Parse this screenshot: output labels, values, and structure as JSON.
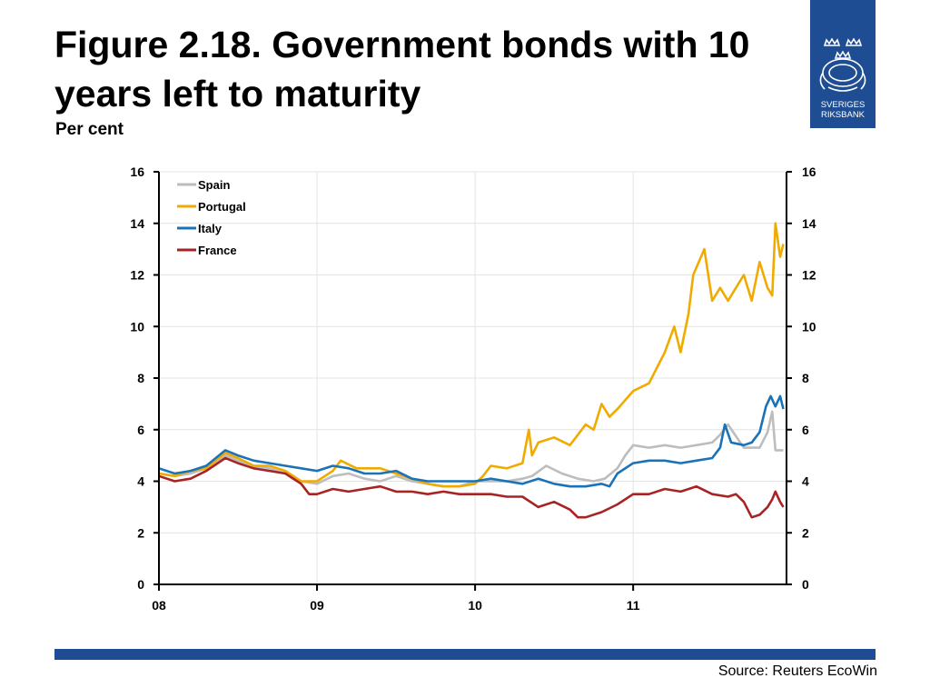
{
  "title": "Figure 2.18. Government bonds with 10 years left to maturity",
  "subtitle": "Per cent",
  "logo": {
    "line1": "SVERIGES",
    "line2": "RIKSBANK",
    "icon": "riksbank-crest-icon"
  },
  "source": "Source: Reuters EcoWin",
  "colors": {
    "brand": "#1f4d93",
    "spain": "#bdbdbd",
    "portugal": "#f0ab00",
    "italy": "#1a73b8",
    "france": "#a82424"
  },
  "chart_data": {
    "type": "line",
    "title": "Figure 2.18. Government bonds with 10 years left to maturity",
    "ylabel": "Per cent",
    "xlabel": "",
    "xlim": [
      2008.0,
      2011.97
    ],
    "ylim": [
      0,
      16
    ],
    "x_ticks": [
      2008,
      2009,
      2010,
      2011
    ],
    "x_tick_labels": [
      "08",
      "09",
      "10",
      "11"
    ],
    "y_ticks": [
      0,
      2,
      4,
      6,
      8,
      10,
      12,
      14,
      16
    ],
    "y_tick_labels": [
      "0",
      "2",
      "4",
      "6",
      "8",
      "10",
      "12",
      "14",
      "16"
    ],
    "grid": true,
    "legend": "top-left",
    "series": [
      {
        "name": "Spain",
        "color": "#bdbdbd",
        "x": [
          2008.0,
          2008.1,
          2008.2,
          2008.3,
          2008.42,
          2008.5,
          2008.6,
          2008.7,
          2008.8,
          2008.9,
          2009.0,
          2009.1,
          2009.2,
          2009.3,
          2009.4,
          2009.5,
          2009.6,
          2009.7,
          2009.8,
          2009.9,
          2010.0,
          2010.1,
          2010.2,
          2010.3,
          2010.36,
          2010.45,
          2010.55,
          2010.65,
          2010.75,
          2010.82,
          2010.9,
          2010.95,
          2011.0,
          2011.1,
          2011.2,
          2011.3,
          2011.4,
          2011.5,
          2011.55,
          2011.6,
          2011.7,
          2011.8,
          2011.85,
          2011.88,
          2011.9,
          2011.95
        ],
        "y": [
          4.3,
          4.2,
          4.3,
          4.5,
          5.0,
          4.8,
          4.6,
          4.5,
          4.3,
          4.0,
          3.9,
          4.2,
          4.3,
          4.1,
          4.0,
          4.2,
          4.0,
          3.9,
          3.8,
          3.8,
          4.0,
          4.0,
          4.0,
          4.1,
          4.2,
          4.6,
          4.3,
          4.1,
          4.0,
          4.1,
          4.5,
          5.0,
          5.4,
          5.3,
          5.4,
          5.3,
          5.4,
          5.5,
          5.8,
          6.2,
          5.3,
          5.3,
          5.9,
          6.7,
          5.2,
          5.2
        ]
      },
      {
        "name": "Portugal",
        "color": "#f0ab00",
        "x": [
          2008.0,
          2008.1,
          2008.2,
          2008.3,
          2008.42,
          2008.5,
          2008.6,
          2008.7,
          2008.8,
          2008.9,
          2009.0,
          2009.1,
          2009.15,
          2009.25,
          2009.4,
          2009.5,
          2009.6,
          2009.7,
          2009.8,
          2009.9,
          2010.0,
          2010.05,
          2010.1,
          2010.2,
          2010.3,
          2010.34,
          2010.36,
          2010.4,
          2010.5,
          2010.6,
          2010.7,
          2010.75,
          2010.8,
          2010.85,
          2010.9,
          2011.0,
          2011.1,
          2011.2,
          2011.26,
          2011.3,
          2011.35,
          2011.38,
          2011.45,
          2011.5,
          2011.55,
          2011.6,
          2011.65,
          2011.7,
          2011.75,
          2011.8,
          2011.85,
          2011.88,
          2011.9,
          2011.93,
          2011.95
        ],
        "y": [
          4.3,
          4.2,
          4.4,
          4.5,
          5.1,
          4.9,
          4.6,
          4.6,
          4.4,
          4.0,
          4.0,
          4.4,
          4.8,
          4.5,
          4.5,
          4.3,
          4.1,
          3.9,
          3.8,
          3.8,
          3.9,
          4.2,
          4.6,
          4.5,
          4.7,
          6.0,
          5.0,
          5.5,
          5.7,
          5.4,
          6.2,
          6.0,
          7.0,
          6.5,
          6.8,
          7.5,
          7.8,
          9.0,
          10.0,
          9.0,
          10.5,
          12.0,
          13.0,
          11.0,
          11.5,
          11.0,
          11.5,
          12.0,
          11.0,
          12.5,
          11.5,
          11.2,
          14.0,
          12.7,
          13.2
        ]
      },
      {
        "name": "Italy",
        "color": "#1a73b8",
        "x": [
          2008.0,
          2008.1,
          2008.2,
          2008.3,
          2008.42,
          2008.5,
          2008.6,
          2008.7,
          2008.8,
          2008.9,
          2009.0,
          2009.1,
          2009.2,
          2009.3,
          2009.4,
          2009.5,
          2009.6,
          2009.7,
          2009.8,
          2009.9,
          2010.0,
          2010.1,
          2010.2,
          2010.3,
          2010.4,
          2010.5,
          2010.6,
          2010.7,
          2010.8,
          2010.85,
          2010.9,
          2011.0,
          2011.1,
          2011.2,
          2011.3,
          2011.4,
          2011.5,
          2011.55,
          2011.58,
          2011.62,
          2011.7,
          2011.75,
          2011.8,
          2011.84,
          2011.87,
          2011.9,
          2011.93,
          2011.95
        ],
        "y": [
          4.5,
          4.3,
          4.4,
          4.6,
          5.2,
          5.0,
          4.8,
          4.7,
          4.6,
          4.5,
          4.4,
          4.6,
          4.5,
          4.3,
          4.3,
          4.4,
          4.1,
          4.0,
          4.0,
          4.0,
          4.0,
          4.1,
          4.0,
          3.9,
          4.1,
          3.9,
          3.8,
          3.8,
          3.9,
          3.8,
          4.3,
          4.7,
          4.8,
          4.8,
          4.7,
          4.8,
          4.9,
          5.3,
          6.2,
          5.5,
          5.4,
          5.5,
          5.9,
          6.9,
          7.3,
          6.9,
          7.3,
          6.8
        ]
      },
      {
        "name": "France",
        "color": "#a82424",
        "x": [
          2008.0,
          2008.1,
          2008.2,
          2008.3,
          2008.42,
          2008.5,
          2008.6,
          2008.7,
          2008.8,
          2008.9,
          2008.95,
          2009.0,
          2009.1,
          2009.2,
          2009.3,
          2009.4,
          2009.5,
          2009.6,
          2009.7,
          2009.8,
          2009.9,
          2010.0,
          2010.1,
          2010.2,
          2010.3,
          2010.4,
          2010.5,
          2010.6,
          2010.65,
          2010.7,
          2010.8,
          2010.9,
          2011.0,
          2011.1,
          2011.2,
          2011.3,
          2011.4,
          2011.5,
          2011.6,
          2011.65,
          2011.7,
          2011.75,
          2011.8,
          2011.85,
          2011.88,
          2011.9,
          2011.93,
          2011.95
        ],
        "y": [
          4.2,
          4.0,
          4.1,
          4.4,
          4.9,
          4.7,
          4.5,
          4.4,
          4.3,
          3.9,
          3.5,
          3.5,
          3.7,
          3.6,
          3.7,
          3.8,
          3.6,
          3.6,
          3.5,
          3.6,
          3.5,
          3.5,
          3.5,
          3.4,
          3.4,
          3.0,
          3.2,
          2.9,
          2.6,
          2.6,
          2.8,
          3.1,
          3.5,
          3.5,
          3.7,
          3.6,
          3.8,
          3.5,
          3.4,
          3.5,
          3.2,
          2.6,
          2.7,
          3.0,
          3.3,
          3.6,
          3.2,
          3.0
        ]
      }
    ]
  }
}
